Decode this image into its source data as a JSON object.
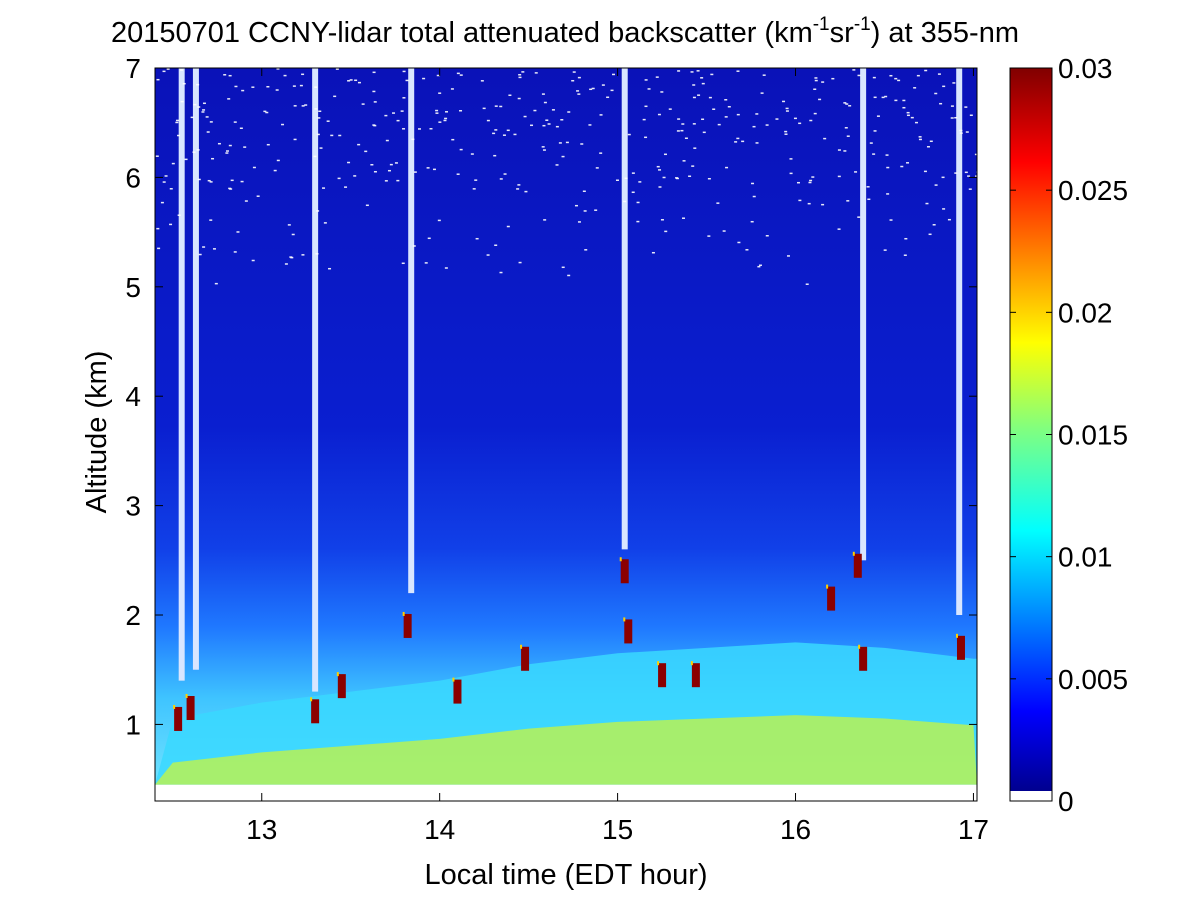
{
  "chart_data": {
    "type": "heatmap",
    "title": {
      "prefix": "20150701 CCNY-lidar total attenuated backscatter (km",
      "sup1": "-1",
      "mid": "sr",
      "sup2": "-1",
      "suffix": ") at 355-nm"
    },
    "xlabel": "Local time (EDT hour)",
    "ylabel": "Altitude (km)",
    "xlim": [
      12.4,
      17.02
    ],
    "ylim": [
      0.3,
      7
    ],
    "xticks": [
      13,
      14,
      15,
      16,
      17
    ],
    "xtick_labels": [
      "13",
      "14",
      "15",
      "16",
      "17"
    ],
    "yticks": [
      1,
      2,
      3,
      4,
      5,
      6,
      7
    ],
    "ytick_labels": [
      "1",
      "2",
      "3",
      "4",
      "5",
      "6",
      "7"
    ],
    "data_bottom_altitude_km": 0.45,
    "colorbar": {
      "min": 0,
      "max": 0.03,
      "colormap": "jet",
      "ticks": [
        0,
        0.005,
        0.01,
        0.015,
        0.02,
        0.025,
        0.03
      ],
      "tick_labels": [
        "0",
        "0.005",
        "0.01",
        "0.015",
        "0.02",
        "0.025",
        "0.03"
      ]
    },
    "grid": false,
    "boundary_layer": {
      "description_values": [
        {
          "time": 12.5,
          "top_km": 1.05
        },
        {
          "time": 13.0,
          "top_km": 1.2
        },
        {
          "time": 13.5,
          "top_km": 1.3
        },
        {
          "time": 14.0,
          "top_km": 1.4
        },
        {
          "time": 14.5,
          "top_km": 1.55
        },
        {
          "time": 15.0,
          "top_km": 1.65
        },
        {
          "time": 15.5,
          "top_km": 1.7
        },
        {
          "time": 16.0,
          "top_km": 1.75
        },
        {
          "time": 16.5,
          "top_km": 1.7
        },
        {
          "time": 17.0,
          "top_km": 1.6
        }
      ]
    },
    "cloud_clusters": [
      {
        "time": 12.53,
        "alt_km": 1.05
      },
      {
        "time": 12.6,
        "alt_km": 1.15
      },
      {
        "time": 13.3,
        "alt_km": 1.12
      },
      {
        "time": 13.45,
        "alt_km": 1.35
      },
      {
        "time": 13.82,
        "alt_km": 1.9
      },
      {
        "time": 14.1,
        "alt_km": 1.3
      },
      {
        "time": 14.48,
        "alt_km": 1.6
      },
      {
        "time": 15.04,
        "alt_km": 2.4
      },
      {
        "time": 15.06,
        "alt_km": 1.85
      },
      {
        "time": 15.25,
        "alt_km": 1.45
      },
      {
        "time": 15.44,
        "alt_km": 1.45
      },
      {
        "time": 16.2,
        "alt_km": 2.15
      },
      {
        "time": 16.35,
        "alt_km": 2.45
      },
      {
        "time": 16.38,
        "alt_km": 1.6
      },
      {
        "time": 16.93,
        "alt_km": 1.7
      }
    ],
    "clear_gaps": [
      {
        "time": 12.55,
        "from_km": 1.4,
        "to_km": 7
      },
      {
        "time": 12.63,
        "from_km": 1.5,
        "to_km": 7
      },
      {
        "time": 13.3,
        "from_km": 1.3,
        "to_km": 7
      },
      {
        "time": 13.84,
        "from_km": 2.2,
        "to_km": 7
      },
      {
        "time": 15.04,
        "from_km": 2.6,
        "to_km": 7
      },
      {
        "time": 16.38,
        "from_km": 2.5,
        "to_km": 7
      },
      {
        "time": 16.92,
        "from_km": 2.0,
        "to_km": 7
      }
    ]
  }
}
